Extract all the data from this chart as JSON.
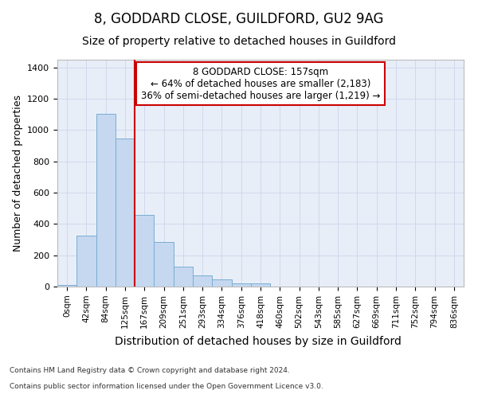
{
  "title1": "8, GODDARD CLOSE, GUILDFORD, GU2 9AG",
  "title2": "Size of property relative to detached houses in Guildford",
  "xlabel": "Distribution of detached houses by size in Guildford",
  "ylabel": "Number of detached properties",
  "footnote1": "Contains HM Land Registry data © Crown copyright and database right 2024.",
  "footnote2": "Contains public sector information licensed under the Open Government Licence v3.0.",
  "categories": [
    "0sqm",
    "42sqm",
    "84sqm",
    "125sqm",
    "167sqm",
    "209sqm",
    "251sqm",
    "293sqm",
    "334sqm",
    "376sqm",
    "418sqm",
    "460sqm",
    "502sqm",
    "543sqm",
    "585sqm",
    "627sqm",
    "669sqm",
    "711sqm",
    "752sqm",
    "794sqm",
    "836sqm"
  ],
  "values": [
    10,
    325,
    1105,
    945,
    460,
    285,
    125,
    70,
    45,
    20,
    20,
    0,
    0,
    0,
    0,
    0,
    0,
    0,
    0,
    0,
    0
  ],
  "bar_color": "#c5d8f0",
  "bar_edge_color": "#7aadd4",
  "vline_color": "#cc0000",
  "annotation_text": "8 GODDARD CLOSE: 157sqm\n← 64% of detached houses are smaller (2,183)\n36% of semi-detached houses are larger (1,219) →",
  "annotation_box_color": "#ffffff",
  "annotation_box_edge": "#cc0000",
  "ylim": [
    0,
    1450
  ],
  "yticks": [
    0,
    200,
    400,
    600,
    800,
    1000,
    1200,
    1400
  ],
  "grid_color": "#d0d8ec",
  "background_color": "#e8eef8",
  "title1_fontsize": 12,
  "title2_fontsize": 10,
  "xlabel_fontsize": 10,
  "ylabel_fontsize": 9,
  "annot_fontsize": 8.5,
  "tick_fontsize": 7.5,
  "ytick_fontsize": 8,
  "footnote_fontsize": 6.5,
  "vline_x_index": 4
}
